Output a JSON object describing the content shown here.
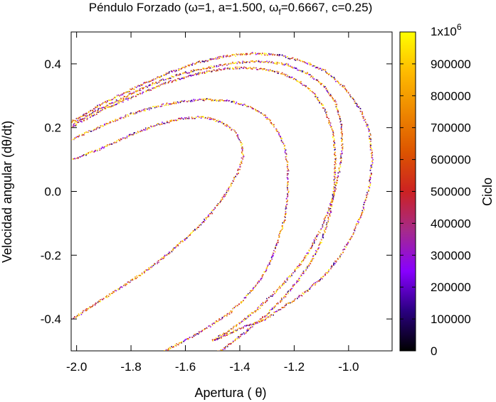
{
  "chart_data": {
    "type": "scatter",
    "title": "Péndulo Forzado (ω=1, a=1.500, ω_f=0.6667, c=0.25)",
    "title_parts": {
      "prefix": "Péndulo Forzado (ω=1, a=1.500, ω",
      "subscript": "f",
      "suffix": "=0.6667, c=0.25)"
    },
    "xlabel": "Apertura ( θ)",
    "ylabel": "Velocidad angular (dθ/dt)",
    "xlim": [
      -2.02,
      -0.84
    ],
    "ylim": [
      -0.5,
      0.5
    ],
    "x_ticks": [
      -2.0,
      -1.8,
      -1.6,
      -1.4,
      -1.2,
      -1.0
    ],
    "x_tick_labels": [
      "-2.0",
      "-1.8",
      "-1.6",
      "-1.4",
      "-1.2",
      "-1.0"
    ],
    "y_ticks": [
      -0.4,
      -0.2,
      0.0,
      0.2,
      0.4
    ],
    "y_tick_labels": [
      "-0.4",
      "-0.2",
      "0.0",
      "0.2",
      "0.4"
    ],
    "grid": false,
    "legend": "none",
    "colorbar": {
      "label": "Ciclo",
      "min": 0,
      "max": 1000000,
      "ticks": [
        0,
        100000,
        200000,
        300000,
        400000,
        500000,
        600000,
        700000,
        800000,
        900000
      ],
      "tick_labels": [
        "0",
        "100000",
        "200000",
        "300000",
        "400000",
        "500000",
        "600000",
        "700000",
        "800000",
        "900000"
      ],
      "top_label_base": "1x10",
      "top_label_exp": "6",
      "colors": [
        "#000000",
        "#2a0080",
        "#8800ff",
        "#a52a8c",
        "#cc2222",
        "#dd5500",
        "#ee8800",
        "#ffbb00",
        "#ffff00"
      ]
    },
    "series": [
      {
        "points": [
          [
            -2.02,
            0.22
          ],
          [
            -1.9,
            0.28
          ],
          [
            -1.78,
            0.33
          ],
          [
            -1.66,
            0.375
          ],
          [
            -1.56,
            0.405
          ],
          [
            -1.46,
            0.425
          ],
          [
            -1.36,
            0.435
          ],
          [
            -1.26,
            0.43
          ],
          [
            -1.17,
            0.41
          ],
          [
            -1.09,
            0.38
          ],
          [
            -1.02,
            0.33
          ],
          [
            -0.96,
            0.26
          ],
          [
            -0.925,
            0.19
          ],
          [
            -0.915,
            0.1
          ],
          [
            -0.925,
            0.02
          ],
          [
            -0.95,
            -0.06
          ],
          [
            -0.99,
            -0.14
          ],
          [
            -1.04,
            -0.21
          ],
          [
            -1.1,
            -0.27
          ],
          [
            -1.17,
            -0.32
          ],
          [
            -1.24,
            -0.36
          ],
          [
            -1.31,
            -0.4
          ],
          [
            -1.38,
            -0.42
          ],
          [
            -1.44,
            -0.445
          ],
          [
            -1.5,
            -0.465
          ],
          [
            -1.45,
            -0.44
          ],
          [
            -1.4,
            -0.41
          ],
          [
            -1.34,
            -0.37
          ],
          [
            -1.28,
            -0.32
          ],
          [
            -1.21,
            -0.26
          ],
          [
            -1.15,
            -0.19
          ],
          [
            -1.1,
            -0.11
          ],
          [
            -1.06,
            -0.02
          ],
          [
            -1.035,
            0.07
          ],
          [
            -1.025,
            0.15
          ],
          [
            -1.03,
            0.22
          ],
          [
            -1.05,
            0.28
          ],
          [
            -1.09,
            0.33
          ],
          [
            -1.15,
            0.37
          ],
          [
            -1.23,
            0.4
          ],
          [
            -1.32,
            0.41
          ],
          [
            -1.42,
            0.405
          ],
          [
            -1.52,
            0.39
          ],
          [
            -1.62,
            0.37
          ],
          [
            -1.72,
            0.34
          ],
          [
            -1.82,
            0.3
          ],
          [
            -1.92,
            0.26
          ],
          [
            -2.02,
            0.21
          ]
        ]
      },
      {
        "points": [
          [
            -2.02,
            0.205
          ],
          [
            -1.9,
            0.26
          ],
          [
            -1.78,
            0.305
          ],
          [
            -1.66,
            0.345
          ],
          [
            -1.56,
            0.37
          ],
          [
            -1.47,
            0.385
          ],
          [
            -1.39,
            0.39
          ],
          [
            -1.31,
            0.385
          ],
          [
            -1.24,
            0.37
          ],
          [
            -1.18,
            0.345
          ],
          [
            -1.13,
            0.31
          ],
          [
            -1.09,
            0.26
          ],
          [
            -1.06,
            0.19
          ],
          [
            -1.05,
            0.1
          ],
          [
            -1.055,
            0.01
          ],
          [
            -1.07,
            -0.07
          ],
          [
            -1.1,
            -0.15
          ],
          [
            -1.14,
            -0.22
          ],
          [
            -1.19,
            -0.28
          ],
          [
            -1.25,
            -0.34
          ],
          [
            -1.31,
            -0.39
          ],
          [
            -1.38,
            -0.44
          ],
          [
            -1.46,
            -0.49
          ],
          [
            -1.5,
            -0.51
          ]
        ]
      },
      {
        "points": [
          [
            -2.02,
            0.165
          ],
          [
            -1.9,
            0.21
          ],
          [
            -1.8,
            0.245
          ],
          [
            -1.7,
            0.27
          ],
          [
            -1.61,
            0.285
          ],
          [
            -1.52,
            0.29
          ],
          [
            -1.44,
            0.285
          ],
          [
            -1.37,
            0.27
          ],
          [
            -1.31,
            0.24
          ],
          [
            -1.27,
            0.2
          ],
          [
            -1.24,
            0.15
          ],
          [
            -1.225,
            0.08
          ],
          [
            -1.225,
            0.0
          ],
          [
            -1.235,
            -0.08
          ],
          [
            -1.26,
            -0.15
          ],
          [
            -1.29,
            -0.22
          ],
          [
            -1.33,
            -0.28
          ],
          [
            -1.38,
            -0.33
          ],
          [
            -1.44,
            -0.38
          ],
          [
            -1.51,
            -0.42
          ],
          [
            -1.59,
            -0.46
          ],
          [
            -1.68,
            -0.5
          ],
          [
            -1.72,
            -0.51
          ]
        ]
      },
      {
        "points": [
          [
            -2.02,
            -0.4
          ],
          [
            -1.93,
            -0.35
          ],
          [
            -1.84,
            -0.3
          ],
          [
            -1.75,
            -0.25
          ],
          [
            -1.66,
            -0.19
          ],
          [
            -1.58,
            -0.13
          ],
          [
            -1.51,
            -0.07
          ],
          [
            -1.45,
            0.0
          ],
          [
            -1.41,
            0.06
          ],
          [
            -1.39,
            0.11
          ],
          [
            -1.395,
            0.15
          ],
          [
            -1.42,
            0.19
          ],
          [
            -1.47,
            0.22
          ],
          [
            -1.54,
            0.235
          ],
          [
            -1.62,
            0.23
          ],
          [
            -1.71,
            0.21
          ],
          [
            -1.8,
            0.18
          ],
          [
            -1.9,
            0.14
          ],
          [
            -2.02,
            0.1
          ]
        ]
      }
    ]
  }
}
